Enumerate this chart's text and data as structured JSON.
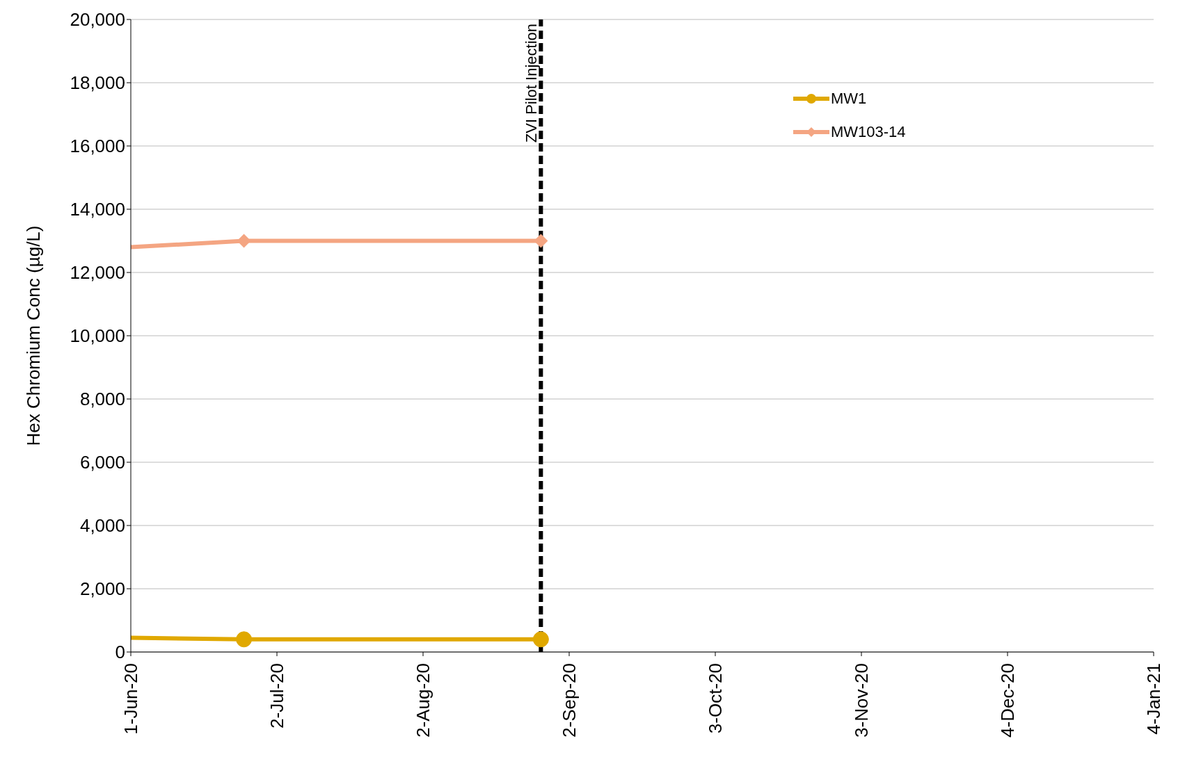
{
  "chart_data": {
    "type": "line",
    "ylabel": "Hex Chromium Conc (µg/L)",
    "x": [
      "2020-06-01",
      "2020-06-25",
      "2020-08-27"
    ],
    "series": [
      {
        "name": "MW1",
        "color": "#e0a800",
        "marker": "circle",
        "values": [
          450,
          400,
          400
        ]
      },
      {
        "name": "MW103-14",
        "color": "#f4a582",
        "marker": "diamond",
        "values": [
          12800,
          13000,
          13000
        ]
      }
    ],
    "xlim": [
      "2020-06-01",
      "2021-01-04"
    ],
    "xticks": [
      {
        "value": "2020-06-01",
        "label": "1-Jun-20"
      },
      {
        "value": "2020-07-02",
        "label": "2-Jul-20"
      },
      {
        "value": "2020-08-02",
        "label": "2-Aug-20"
      },
      {
        "value": "2020-09-02",
        "label": "2-Sep-20"
      },
      {
        "value": "2020-10-03",
        "label": "3-Oct-20"
      },
      {
        "value": "2020-11-03",
        "label": "3-Nov-20"
      },
      {
        "value": "2020-12-04",
        "label": "4-Dec-20"
      },
      {
        "value": "2021-01-04",
        "label": "4-Jan-21"
      }
    ],
    "ylim": [
      0,
      20000
    ],
    "yticks": [
      0,
      {
        "value": 2000,
        "label": "2,000"
      },
      {
        "value": 4000,
        "label": "4,000"
      },
      {
        "value": 6000,
        "label": "6,000"
      },
      {
        "value": 8000,
        "label": "8,000"
      },
      {
        "value": 10000,
        "label": "10,000"
      },
      {
        "value": 12000,
        "label": "12,000"
      },
      {
        "value": 14000,
        "label": "14,000"
      },
      {
        "value": 16000,
        "label": "16,000"
      },
      {
        "value": 18000,
        "label": "18,000"
      },
      {
        "value": 20000,
        "label": "20,000"
      }
    ],
    "ref_lines": [
      {
        "axis": "x",
        "value": "2020-08-27",
        "label": "ZVI Pilot Injection",
        "color": "#000000",
        "line_style": "dashed"
      }
    ],
    "grid": "y",
    "legend": "top right"
  }
}
